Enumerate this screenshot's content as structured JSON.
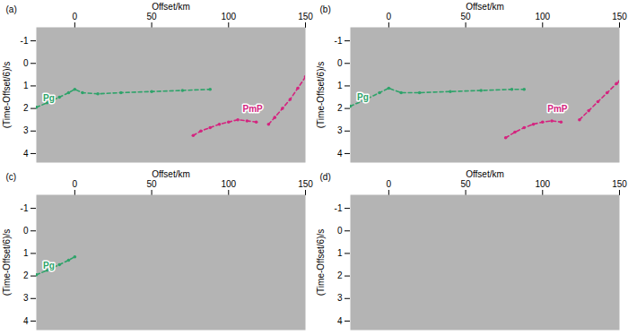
{
  "chart_data": [
    {
      "type": "line",
      "title": "(a)",
      "x_label": "Offset/km",
      "y_label": "(Time-Offset/6)/s",
      "xlim": [
        -25,
        150
      ],
      "ylim": [
        -1.6,
        4.4
      ],
      "xticks": [
        0,
        50,
        100,
        150
      ],
      "yticks": [
        -1,
        0,
        1,
        2,
        3,
        4
      ],
      "marker": "circle",
      "line_style": "dashed",
      "series": [
        {
          "name": "Pg",
          "color": "#2ea36a",
          "x": [
            -25,
            -18,
            -10,
            -4,
            0,
            5,
            15,
            30,
            50,
            70,
            88
          ],
          "values": [
            1.95,
            1.75,
            1.5,
            1.3,
            1.15,
            1.3,
            1.35,
            1.3,
            1.25,
            1.2,
            1.15
          ]
        },
        {
          "name": "PmP",
          "color": "#d4247f",
          "x": [
            77,
            82,
            88,
            94,
            100,
            106,
            112,
            118,
            null,
            126,
            130,
            135,
            140,
            145,
            150
          ],
          "values": [
            3.2,
            3.0,
            2.85,
            2.7,
            2.6,
            2.5,
            2.55,
            2.6,
            null,
            2.7,
            2.4,
            2.0,
            1.6,
            1.1,
            0.6
          ]
        }
      ]
    },
    {
      "type": "line",
      "title": "(b)",
      "x_label": "Offset/km",
      "y_label": "(Time-Offset/6)/s",
      "xlim": [
        -25,
        150
      ],
      "ylim": [
        -1.6,
        4.4
      ],
      "xticks": [
        0,
        50,
        100,
        150
      ],
      "yticks": [
        -1,
        0,
        1,
        2,
        3,
        4
      ],
      "marker": "circle",
      "line_style": "dashed",
      "series": [
        {
          "name": "Pg",
          "color": "#2ea36a",
          "x": [
            -25,
            -15,
            -6,
            0,
            8,
            20,
            40,
            60,
            80,
            88
          ],
          "values": [
            1.9,
            1.6,
            1.3,
            1.1,
            1.3,
            1.3,
            1.25,
            1.2,
            1.15,
            1.15
          ]
        },
        {
          "name": "PmP",
          "color": "#d4247f",
          "x": [
            76,
            82,
            88,
            94,
            100,
            106,
            112,
            null,
            124,
            130,
            136,
            142,
            148,
            150
          ],
          "values": [
            3.3,
            3.05,
            2.85,
            2.7,
            2.6,
            2.55,
            2.6,
            null,
            2.5,
            2.1,
            1.7,
            1.3,
            0.9,
            0.8
          ]
        }
      ]
    },
    {
      "type": "line",
      "title": "(c)",
      "x_label": "Offset/km",
      "y_label": "(Time-Offset/6)/s",
      "xlim": [
        -25,
        150
      ],
      "ylim": [
        -1.6,
        4.4
      ],
      "xticks": [
        0,
        50,
        100,
        150
      ],
      "yticks": [
        -1,
        0,
        1,
        2,
        3,
        4
      ],
      "marker": "circle",
      "line_style": "dashed",
      "series": [
        {
          "name": "Pg",
          "color": "#2ea36a",
          "x": [
            -25,
            -18,
            -10,
            -4,
            0
          ],
          "values": [
            1.95,
            1.75,
            1.5,
            1.3,
            1.15
          ]
        }
      ]
    },
    {
      "type": "line",
      "title": "(d)",
      "x_label": "Offset/km",
      "y_label": "(Time-Offset/6)/s",
      "xlim": [
        -25,
        150
      ],
      "ylim": [
        -1.6,
        4.4
      ],
      "xticks": [
        0,
        50,
        100,
        150
      ],
      "yticks": [
        -1,
        0,
        1,
        2,
        3,
        4
      ],
      "marker": "circle",
      "line_style": "dashed",
      "series": []
    }
  ]
}
